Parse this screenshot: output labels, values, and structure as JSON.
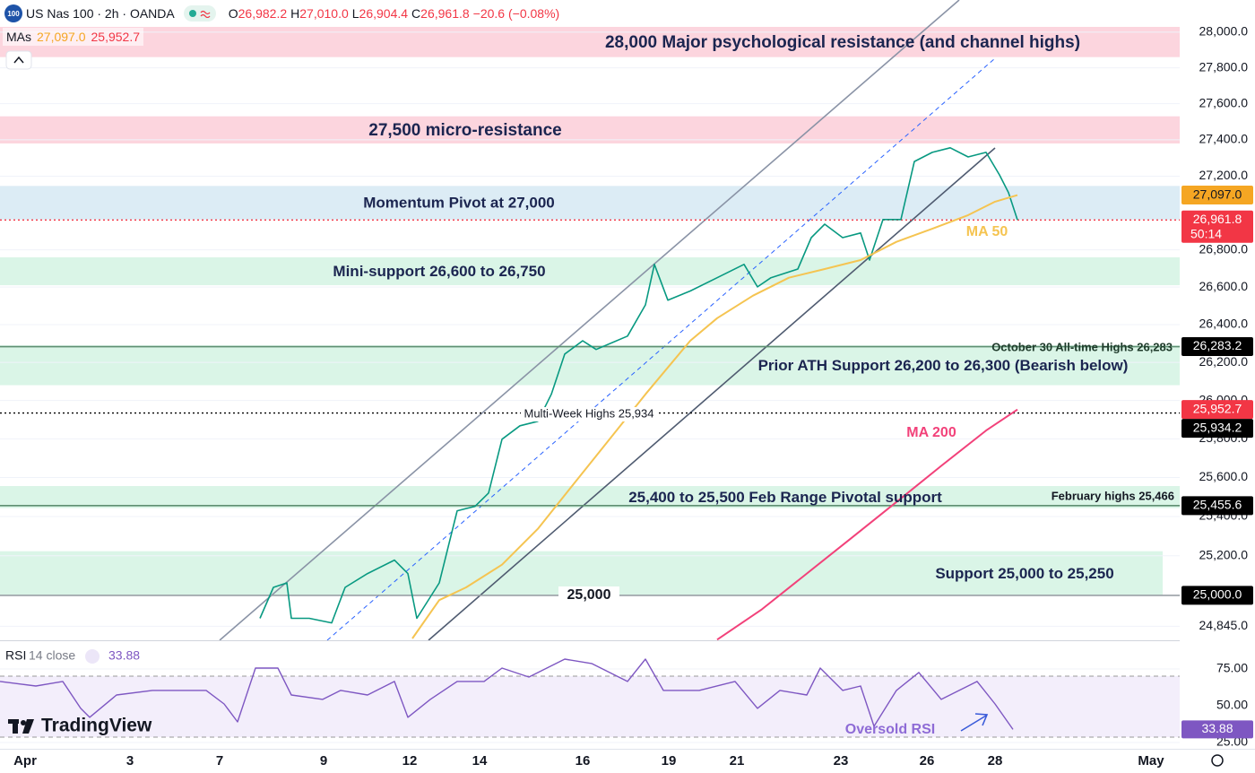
{
  "header": {
    "logo": "100",
    "symbol": "US Nas 100 · 2h · OANDA",
    "ohlc": [
      {
        "key": "O",
        "value": "26,982.2"
      },
      {
        "key": "H",
        "value": "27,010.0"
      },
      {
        "key": "L",
        "value": "26,904.4"
      },
      {
        "key": "C",
        "value": "26,961.8"
      }
    ],
    "change": "−20.6 (−0.08%)",
    "mas_label": "MAs",
    "mas": [
      {
        "value": "27,097.0",
        "color": "#f5a623"
      },
      {
        "value": "25,952.7",
        "color": "#f23645"
      }
    ]
  },
  "brand": "TradingView",
  "chart_data": [
    {
      "type": "line",
      "log_scale": true,
      "grid": true,
      "xlim": [
        0,
        329
      ],
      "ylim": [
        24775,
        28182
      ],
      "xticks": [
        {
          "value": 7,
          "label": "Apr"
        },
        {
          "value": 36.25,
          "label": "3"
        },
        {
          "value": 61.25,
          "label": "7"
        },
        {
          "value": 90.25,
          "label": "9"
        },
        {
          "value": 114.25,
          "label": "12"
        },
        {
          "value": 133.75,
          "label": "14"
        },
        {
          "value": 162.5,
          "label": "16"
        },
        {
          "value": 186.5,
          "label": "19"
        },
        {
          "value": 205.5,
          "label": "21"
        },
        {
          "value": 234.5,
          "label": "23"
        },
        {
          "value": 258.5,
          "label": "26"
        },
        {
          "value": 277.5,
          "label": "28"
        },
        {
          "value": 321,
          "label": "May"
        }
      ],
      "yticks": [
        {
          "value": 28000,
          "label": "28,000.0"
        },
        {
          "value": 27800,
          "label": "27,800.0"
        },
        {
          "value": 27600,
          "label": "27,600.0"
        },
        {
          "value": 27400,
          "label": "27,400.0"
        },
        {
          "value": 27200,
          "label": "27,200.0"
        },
        {
          "value": 26800,
          "label": "26,800.0"
        },
        {
          "value": 26600,
          "label": "26,600.0"
        },
        {
          "value": 26400,
          "label": "26,400.0"
        },
        {
          "value": 26200,
          "label": "26,200.0"
        },
        {
          "value": 26000,
          "label": "26,000.0"
        },
        {
          "value": 25800,
          "label": "25,800.0"
        },
        {
          "value": 25600,
          "label": "25,600.0"
        },
        {
          "value": 25400,
          "label": "25,400.0"
        },
        {
          "value": 25200,
          "label": "25,200.0"
        },
        {
          "value": 24845,
          "label": "24,845.0"
        }
      ],
      "series": [
        {
          "color": "#089981",
          "x": [
            72.5,
            76.25,
            80,
            81.25,
            86.25,
            92.5,
            96.25,
            102.5,
            110,
            113.75,
            116.25,
            122.5,
            127.5,
            132.5,
            136.25,
            140,
            145,
            150,
            153.75,
            157.5,
            162.5,
            166.25,
            175,
            180,
            182.5,
            186.25,
            192.5,
            200,
            207.5,
            211.25,
            215,
            222.5,
            226.25,
            230,
            235,
            240,
            242.5,
            246.25,
            251.25,
            255,
            260,
            265,
            270,
            275,
            278.75,
            281.25,
            283.75
          ],
          "values": [
            24885,
            25040,
            25063,
            24885,
            24885,
            24862,
            25040,
            25110,
            25178,
            25110,
            24885,
            25063,
            25429,
            25452,
            25520,
            25798,
            25868,
            25891,
            26032,
            26244,
            26314,
            26268,
            26339,
            26505,
            26722,
            26530,
            26579,
            26650,
            26722,
            26601,
            26650,
            26697,
            26866,
            26939,
            26866,
            26891,
            26745,
            26964,
            26964,
            27281,
            27331,
            27356,
            27306,
            27331,
            27207,
            27111,
            26961.8
          ]
        },
        {
          "name": "MA 50",
          "color": "#f5c451",
          "x": [
            115,
            122.5,
            130,
            140,
            150,
            160,
            170,
            180,
            186.25,
            192.5,
            200,
            210,
            220,
            230,
            240,
            250,
            260,
            270,
            277.5,
            283.75
          ],
          "values": [
            24784,
            24976,
            25040,
            25155,
            25337,
            25567,
            25798,
            26032,
            26173,
            26314,
            26434,
            26554,
            26650,
            26697,
            26745,
            26843,
            26914,
            26988,
            27061,
            27097
          ]
        },
        {
          "name": "MA 200",
          "color": "#f2417a",
          "x": [
            200,
            212.5,
            225,
            237.5,
            250,
            262.5,
            275,
            283.75
          ],
          "values": [
            24778,
            24930,
            25110,
            25291,
            25474,
            25660,
            25843,
            25952.7
          ]
        }
      ],
      "zones": [
        {
          "label": "28,000 Major psychological resistance (and channel highs)",
          "range": [
            27860,
            28030
          ],
          "color": "#fcd5de"
        },
        {
          "label": "27,500 micro-resistance",
          "range": [
            27380,
            27530
          ],
          "color": "#fcd5de"
        },
        {
          "label": "Momentum Pivot at 27,000",
          "range": [
            26964,
            27147
          ],
          "color": "#dcecf5"
        },
        {
          "label": "Mini-support 26,600 to 26,750",
          "range": [
            26610,
            26760
          ],
          "color": "#daf5e7"
        },
        {
          "label": "Prior ATH Support 26,200 to 26,300 (Bearish below)",
          "range": [
            26080,
            26290
          ],
          "color": "#daf5e7"
        },
        {
          "label": "25,400 to 25,500 Feb Range Pivotal support",
          "range": [
            25443,
            25556
          ],
          "color": "#daf5e7"
        },
        {
          "label": "Support 25,000 to 25,250",
          "range": [
            25000,
            25223
          ],
          "color": "#daf5e7"
        }
      ],
      "annotations": [
        {
          "text": "October 30 All-time Highs 26,283",
          "color": "#1f3b2b"
        },
        {
          "text": "Multi-Week Highs 25,934",
          "color": "#131722"
        },
        {
          "text": "February highs 25,466",
          "color": "#131722"
        },
        {
          "text": "25,000",
          "color": "#131722"
        }
      ],
      "price_tags": [
        {
          "value": 27097.0,
          "label": "27,097.0",
          "color": "#f5a623",
          "text_color": "#131722",
          "line": null
        },
        {
          "value": 26961.8,
          "label": "26,961.8",
          "color": "#f23645",
          "text_color": "#ffffff",
          "line": "dotted",
          "countdown": "50:14"
        },
        {
          "value": 26283.2,
          "label": "26,283.2",
          "color": "#000000",
          "text_color": "#ffffff",
          "line": "solid",
          "line_color": "#5f8f72"
        },
        {
          "value": 25952.7,
          "label": "25,952.7",
          "color": "#f23645",
          "text_color": "#ffffff",
          "line": null
        },
        {
          "value": 25934.2,
          "label": "25,934.2",
          "color": "#000000",
          "text_color": "#ffffff",
          "line": "dotted",
          "line_color": "#000000"
        },
        {
          "value": 25455.6,
          "label": "25,455.6",
          "color": "#000000",
          "text_color": "#ffffff",
          "line": "solid",
          "line_color": "#5f8f72"
        },
        {
          "value": 25000.0,
          "label": "25,000.0",
          "color": "#000000",
          "text_color": "#ffffff",
          "line": "solid",
          "line_color": "#9aa0a6"
        }
      ]
    },
    {
      "type": "line",
      "title": "RSI",
      "params": "14 close",
      "value": 33.88,
      "color": "#7e57c2",
      "xlim": [
        0,
        329
      ],
      "ylim": [
        20.7,
        94.5
      ],
      "yticks": [
        {
          "value": 75,
          "label": "75.00"
        },
        {
          "value": 50,
          "label": "50.00"
        },
        {
          "value": 25,
          "label": "25.00"
        }
      ],
      "x": [
        0,
        10,
        17.5,
        22.5,
        25,
        32.5,
        42.5,
        50,
        57.5,
        62.5,
        66.25,
        71.25,
        77.5,
        81.25,
        90,
        95,
        102.5,
        110,
        113.75,
        120,
        127.5,
        135,
        140,
        147.5,
        157.5,
        165,
        175,
        180,
        185,
        195,
        205,
        211.25,
        217.5,
        225,
        228.75,
        235,
        240,
        243.75,
        250,
        256.25,
        262.5,
        267.5,
        272.5,
        277.5,
        282.5
      ],
      "values": [
        66.5,
        63.4,
        66.5,
        48.2,
        42.1,
        57.3,
        60.4,
        60.4,
        60.4,
        51.2,
        39.0,
        75.6,
        75.6,
        57.3,
        54.3,
        60.4,
        57.3,
        66.5,
        42.1,
        54.3,
        66.5,
        66.5,
        75.6,
        69.5,
        81.7,
        78.7,
        66.5,
        81.7,
        60.4,
        60.4,
        66.5,
        48.2,
        60.4,
        57.3,
        75.6,
        60.4,
        63.4,
        36.0,
        60.4,
        72.6,
        54.3,
        60.4,
        66.5,
        51.2,
        33.88
      ],
      "annotation": "Oversold RSI"
    }
  ]
}
